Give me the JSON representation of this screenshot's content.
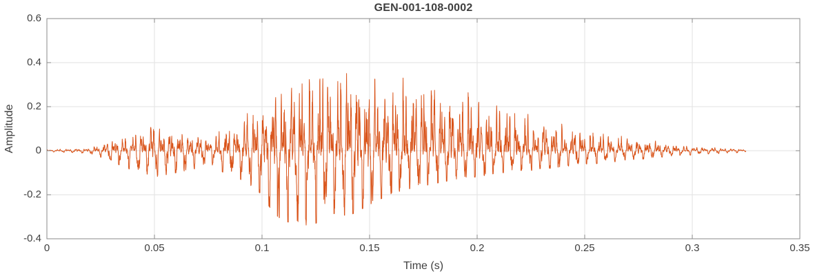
{
  "chart_data": {
    "type": "line",
    "title": "GEN-001-108-0002",
    "xlabel": "Time (s)",
    "ylabel": "Amplitude",
    "xlim": [
      0,
      0.35
    ],
    "ylim": [
      -0.4,
      0.6
    ],
    "x_ticks": [
      0,
      0.05,
      0.1,
      0.15,
      0.2,
      0.25,
      0.3,
      0.35
    ],
    "x_tick_labels": [
      "0",
      "0.05",
      "0.1",
      "0.15",
      "0.2",
      "0.25",
      "0.3",
      "0.35"
    ],
    "y_ticks": [
      -0.4,
      -0.2,
      0,
      0.2,
      0.4,
      0.6
    ],
    "y_tick_labels": [
      "-0.4",
      "-0.2",
      "0",
      "0.2",
      "0.4",
      "0.6"
    ],
    "grid": true,
    "legend": "none",
    "line_color": "#D95319",
    "grid_color": "#e2e2e2",
    "axis_color": "#8a8a8a",
    "text_color": "#3f3f3f",
    "background_color": "#ffffff",
    "signal": {
      "kind": "amplitude-envelope",
      "description": "Speech-like waveform; oscillation bounded by positive and negative peak envelopes read from the plot",
      "t_start": 0,
      "t_end": 0.325,
      "fundamental_hz": 230,
      "peak_positive": 0.43,
      "peak_positive_t": 0.142,
      "peak_negative": -0.35,
      "peak_negative_t": 0.118,
      "envelope_t": [
        0,
        0.01,
        0.02,
        0.025,
        0.03,
        0.035,
        0.04,
        0.045,
        0.05,
        0.055,
        0.06,
        0.065,
        0.07,
        0.075,
        0.08,
        0.085,
        0.09,
        0.095,
        0.1,
        0.105,
        0.11,
        0.115,
        0.12,
        0.125,
        0.13,
        0.135,
        0.14,
        0.145,
        0.15,
        0.155,
        0.16,
        0.165,
        0.17,
        0.175,
        0.18,
        0.185,
        0.19,
        0.195,
        0.2,
        0.205,
        0.21,
        0.215,
        0.22,
        0.225,
        0.23,
        0.235,
        0.24,
        0.245,
        0.25,
        0.255,
        0.26,
        0.265,
        0.27,
        0.275,
        0.28,
        0.285,
        0.29,
        0.295,
        0.3,
        0.305,
        0.31,
        0.315,
        0.32,
        0.325
      ],
      "envelope_pos": [
        0.005,
        0.008,
        0.012,
        0.03,
        0.05,
        0.06,
        0.07,
        0.09,
        0.14,
        0.1,
        0.09,
        0.08,
        0.08,
        0.05,
        0.1,
        0.12,
        0.15,
        0.18,
        0.22,
        0.26,
        0.3,
        0.34,
        0.4,
        0.39,
        0.37,
        0.35,
        0.43,
        0.36,
        0.33,
        0.32,
        0.32,
        0.33,
        0.33,
        0.32,
        0.32,
        0.3,
        0.28,
        0.27,
        0.25,
        0.23,
        0.22,
        0.2,
        0.18,
        0.16,
        0.15,
        0.13,
        0.12,
        0.11,
        0.1,
        0.09,
        0.08,
        0.07,
        0.06,
        0.055,
        0.05,
        0.04,
        0.03,
        0.025,
        0.02,
        0.018,
        0.015,
        0.012,
        0.01,
        0.005
      ],
      "envelope_neg": [
        0.005,
        0.008,
        0.012,
        0.03,
        0.05,
        0.07,
        0.09,
        0.1,
        0.12,
        0.11,
        0.1,
        0.09,
        0.08,
        0.05,
        0.09,
        0.11,
        0.13,
        0.16,
        0.2,
        0.28,
        0.32,
        0.33,
        0.35,
        0.33,
        0.3,
        0.28,
        0.3,
        0.27,
        0.25,
        0.22,
        0.2,
        0.18,
        0.17,
        0.16,
        0.15,
        0.14,
        0.13,
        0.12,
        0.12,
        0.11,
        0.1,
        0.1,
        0.09,
        0.09,
        0.08,
        0.08,
        0.07,
        0.07,
        0.06,
        0.06,
        0.05,
        0.05,
        0.04,
        0.04,
        0.035,
        0.03,
        0.025,
        0.02,
        0.02,
        0.015,
        0.015,
        0.01,
        0.01,
        0.005
      ]
    }
  }
}
